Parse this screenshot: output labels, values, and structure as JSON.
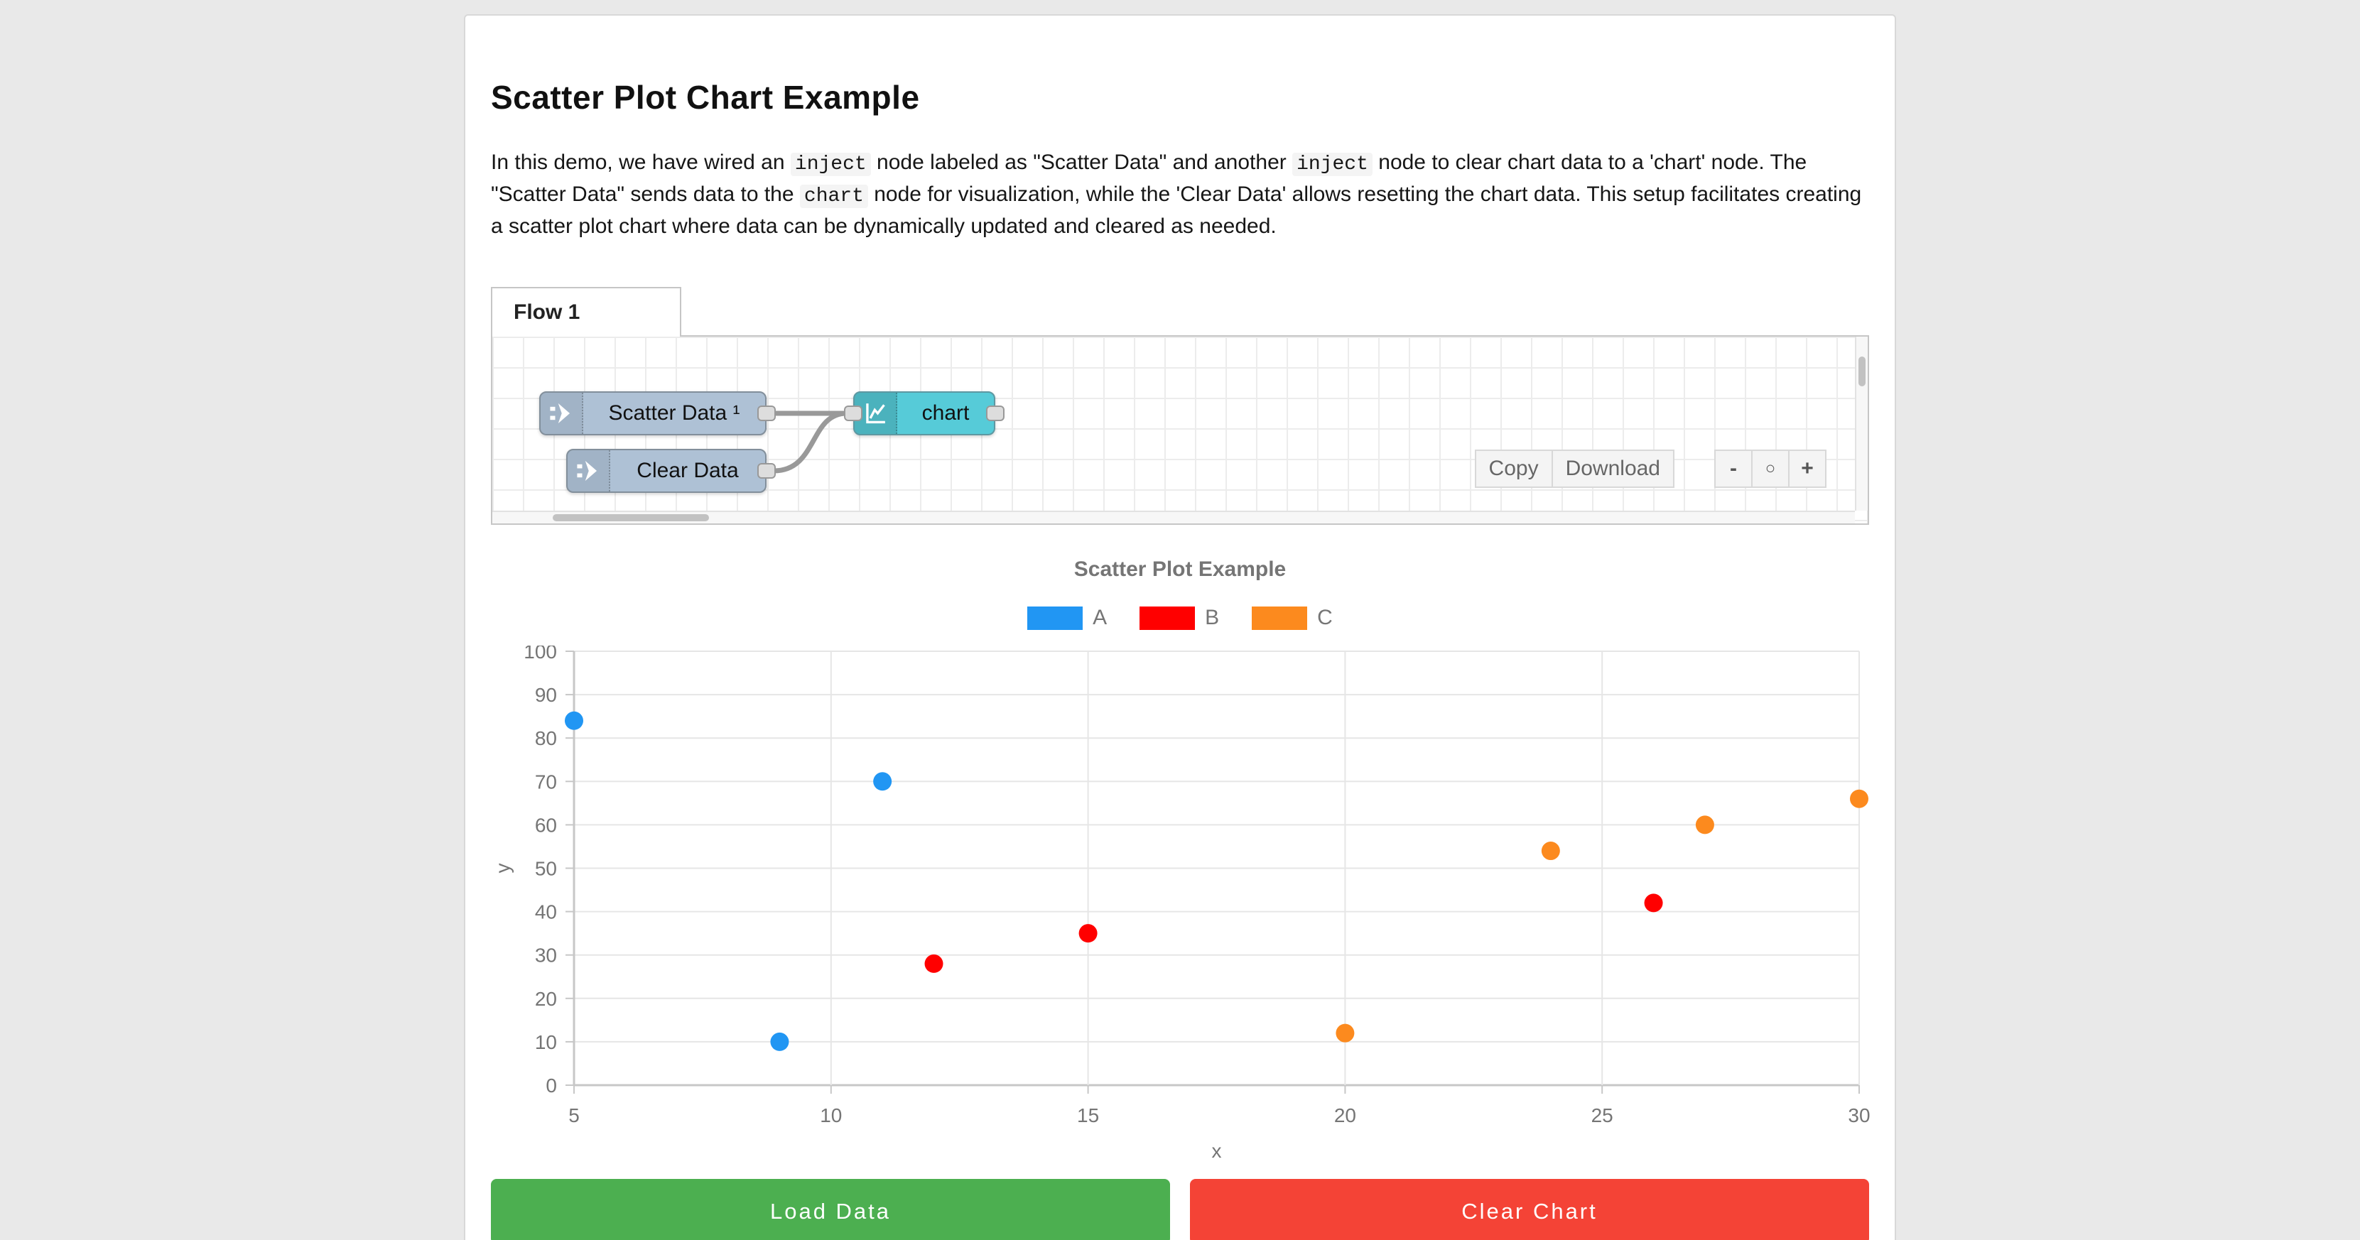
{
  "page": {
    "title": "Scatter Plot Chart Example",
    "intro_segments": [
      {
        "t": "text",
        "v": "In this demo, we have wired an "
      },
      {
        "t": "code",
        "v": "inject"
      },
      {
        "t": "text",
        "v": " node labeled as \"Scatter Data\" and another "
      },
      {
        "t": "code",
        "v": "inject"
      },
      {
        "t": "text",
        "v": " node to clear chart data to a 'chart' node. The \"Scatter Data\" sends data to the "
      },
      {
        "t": "code",
        "v": "chart"
      },
      {
        "t": "text",
        "v": " node for visualization, while the 'Clear Data' allows resetting the chart data. This setup facilitates creating a scatter plot chart where data can be dynamically updated and cleared as needed."
      }
    ]
  },
  "flow": {
    "tab_label": "Flow 1",
    "nodes": [
      {
        "label": "Scatter Data ¹",
        "type": "inject"
      },
      {
        "label": "Clear Data",
        "type": "inject"
      },
      {
        "label": "chart",
        "type": "chart"
      }
    ],
    "toolbar": {
      "copy_label": "Copy",
      "download_label": "Download",
      "zoom_out_label": "-",
      "zoom_reset_label": "○",
      "zoom_in_label": "+"
    },
    "colors": {
      "inject_fill": "#aec1d5",
      "chart_fill": "#56cbd8",
      "wire": "#999999"
    }
  },
  "chart_data": {
    "type": "scatter",
    "title": "Scatter Plot Example",
    "xlabel": "x",
    "ylabel": "y",
    "xlim": [
      5,
      30
    ],
    "ylim": [
      0,
      100
    ],
    "x_ticks": [
      5,
      10,
      15,
      20,
      25,
      30
    ],
    "y_ticks": [
      0,
      10,
      20,
      30,
      40,
      50,
      60,
      70,
      80,
      90,
      100
    ],
    "grid": true,
    "legend_position": "top",
    "series": [
      {
        "name": "A",
        "color": "#2196F3",
        "points": [
          [
            5,
            84
          ],
          [
            9,
            10
          ],
          [
            11,
            70
          ]
        ]
      },
      {
        "name": "B",
        "color": "#FF0000",
        "points": [
          [
            12,
            28
          ],
          [
            15,
            35
          ],
          [
            26,
            42
          ]
        ]
      },
      {
        "name": "C",
        "color": "#FC8A1E",
        "points": [
          [
            20,
            12
          ],
          [
            24,
            54
          ],
          [
            27,
            60
          ],
          [
            30,
            66
          ]
        ]
      }
    ]
  },
  "actions": {
    "load_label": "Load Data",
    "clear_label": "Clear Chart"
  }
}
